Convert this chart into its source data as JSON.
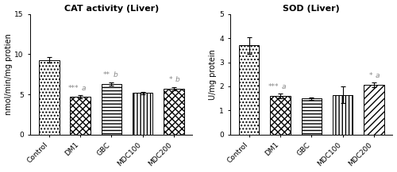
{
  "cat_title": "CAT activity (Liver)",
  "sod_title": "SOD (Liver)",
  "categories": [
    "Control",
    "DM1",
    "GBC",
    "MDC100",
    "MDC200"
  ],
  "cat_values": [
    9.3,
    4.7,
    6.3,
    5.2,
    5.7
  ],
  "cat_errors": [
    0.3,
    0.2,
    0.2,
    0.15,
    0.2
  ],
  "sod_values": [
    3.7,
    1.6,
    1.5,
    1.65,
    2.05
  ],
  "sod_errors": [
    0.35,
    0.1,
    0.05,
    0.35,
    0.1
  ],
  "cat_ylabel": "nmol/min/mg protien",
  "sod_ylabel": "U/mg protein",
  "cat_ylim": [
    0,
    15
  ],
  "sod_ylim": [
    0,
    5
  ],
  "cat_yticks": [
    0,
    5,
    10,
    15
  ],
  "sod_yticks": [
    0,
    1,
    2,
    3,
    4,
    5
  ],
  "cat_annotations": [
    "",
    "***a",
    "**b",
    "",
    "*b"
  ],
  "sod_annotations": [
    "",
    "***a",
    "",
    "",
    "*a"
  ],
  "hatch_patterns": [
    "....",
    "xxxx",
    "----",
    "||||",
    "xxxx"
  ],
  "hatch_patterns_sod": [
    "....",
    "xxxx",
    "----",
    "||||",
    "////"
  ],
  "annotation_color": "#888888",
  "background_color": "#ffffff",
  "title_fontsize": 8,
  "label_fontsize": 7,
  "tick_fontsize": 6.5,
  "annot_fontsize": 6.5
}
